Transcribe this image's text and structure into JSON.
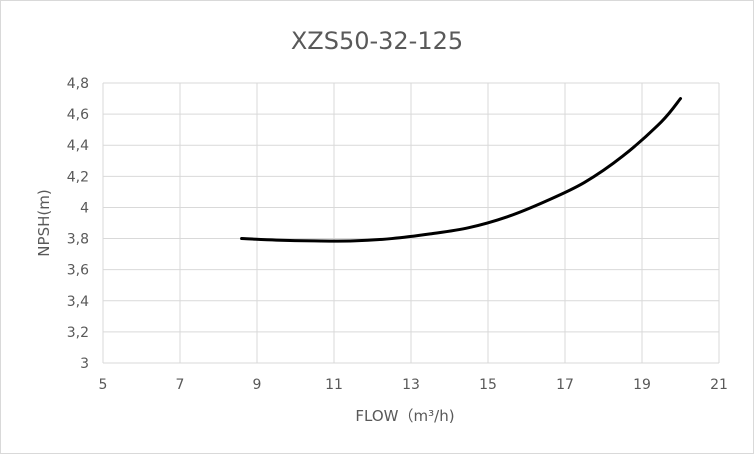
{
  "chart_data": {
    "type": "line",
    "title": "XZS50-32-125",
    "xlabel": "FLOW（m³/h)",
    "ylabel": "NPSH(m)",
    "xlim": [
      5,
      21
    ],
    "ylim": [
      3,
      4.8
    ],
    "x_ticks": [
      "5",
      "7",
      "9",
      "11",
      "13",
      "15",
      "17",
      "19",
      "21"
    ],
    "y_ticks": [
      "3",
      "3,2",
      "3,4",
      "3,6",
      "3,8",
      "4",
      "4,2",
      "4,4",
      "4,6",
      "4,8"
    ],
    "grid": true,
    "series": [
      {
        "color": "#000000",
        "x": [
          8.6,
          9.5,
          10.5,
          11.5,
          12.5,
          13.5,
          14.5,
          15.5,
          16.5,
          17.5,
          18.5,
          19.5,
          20.0
        ],
        "y": [
          3.8,
          3.79,
          3.785,
          3.785,
          3.8,
          3.83,
          3.87,
          3.94,
          4.04,
          4.16,
          4.33,
          4.55,
          4.7
        ]
      }
    ]
  }
}
